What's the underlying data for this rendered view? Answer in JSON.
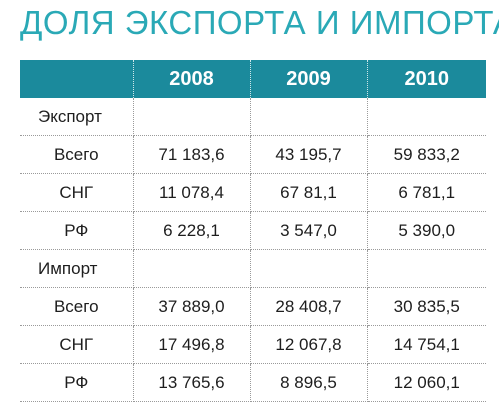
{
  "title": "ДОЛЯ ЭКСПОРТА И ИМПОРТА",
  "colors": {
    "title": "#2aa9b6",
    "header_bg": "#1b8a9c",
    "header_text": "#ffffff",
    "text": "#1e1e1e"
  },
  "table": {
    "headers": [
      "",
      "2008",
      "2009",
      "2010"
    ],
    "rows": [
      [
        "Экспорт",
        "",
        "",
        ""
      ],
      [
        "Всего",
        "71 183,6",
        "43 195,7",
        "59 833,2"
      ],
      [
        "СНГ",
        "11 078,4",
        "67 81,1",
        "6 781,1"
      ],
      [
        "РФ",
        "6 228,1",
        "3 547,0",
        "5 390,0"
      ],
      [
        "Импорт",
        "",
        "",
        ""
      ],
      [
        "Всего",
        "37 889,0",
        "28 408,7",
        "30 835,5"
      ],
      [
        "СНГ",
        "17 496,8",
        "12 067,8",
        "14 754,1"
      ],
      [
        "РФ",
        "13 765,6",
        "8 896,5",
        "12 060,1"
      ]
    ]
  }
}
